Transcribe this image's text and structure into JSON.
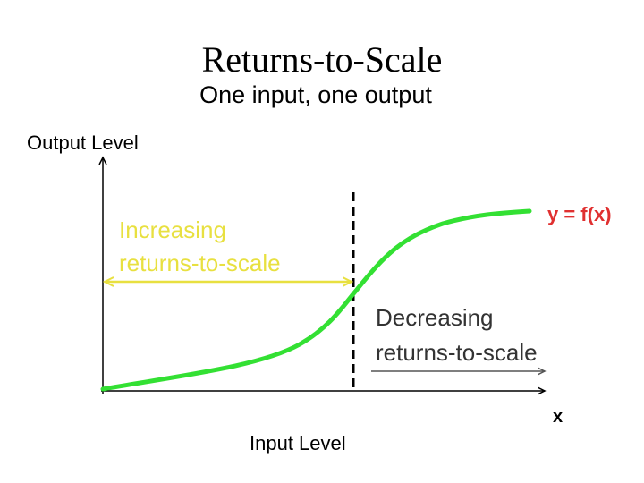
{
  "header": {
    "title": "Returns-to-Scale",
    "subtitle": "One input, one output"
  },
  "axes": {
    "y_label": "Output Level",
    "x_label": "Input Level",
    "x_symbol": "x"
  },
  "curve": {
    "label": "y = f(x)"
  },
  "regions": {
    "increasing": [
      "Increasing",
      "returns-to-scale"
    ],
    "decreasing": [
      "Decreasing",
      "returns-to-scale"
    ]
  }
}
